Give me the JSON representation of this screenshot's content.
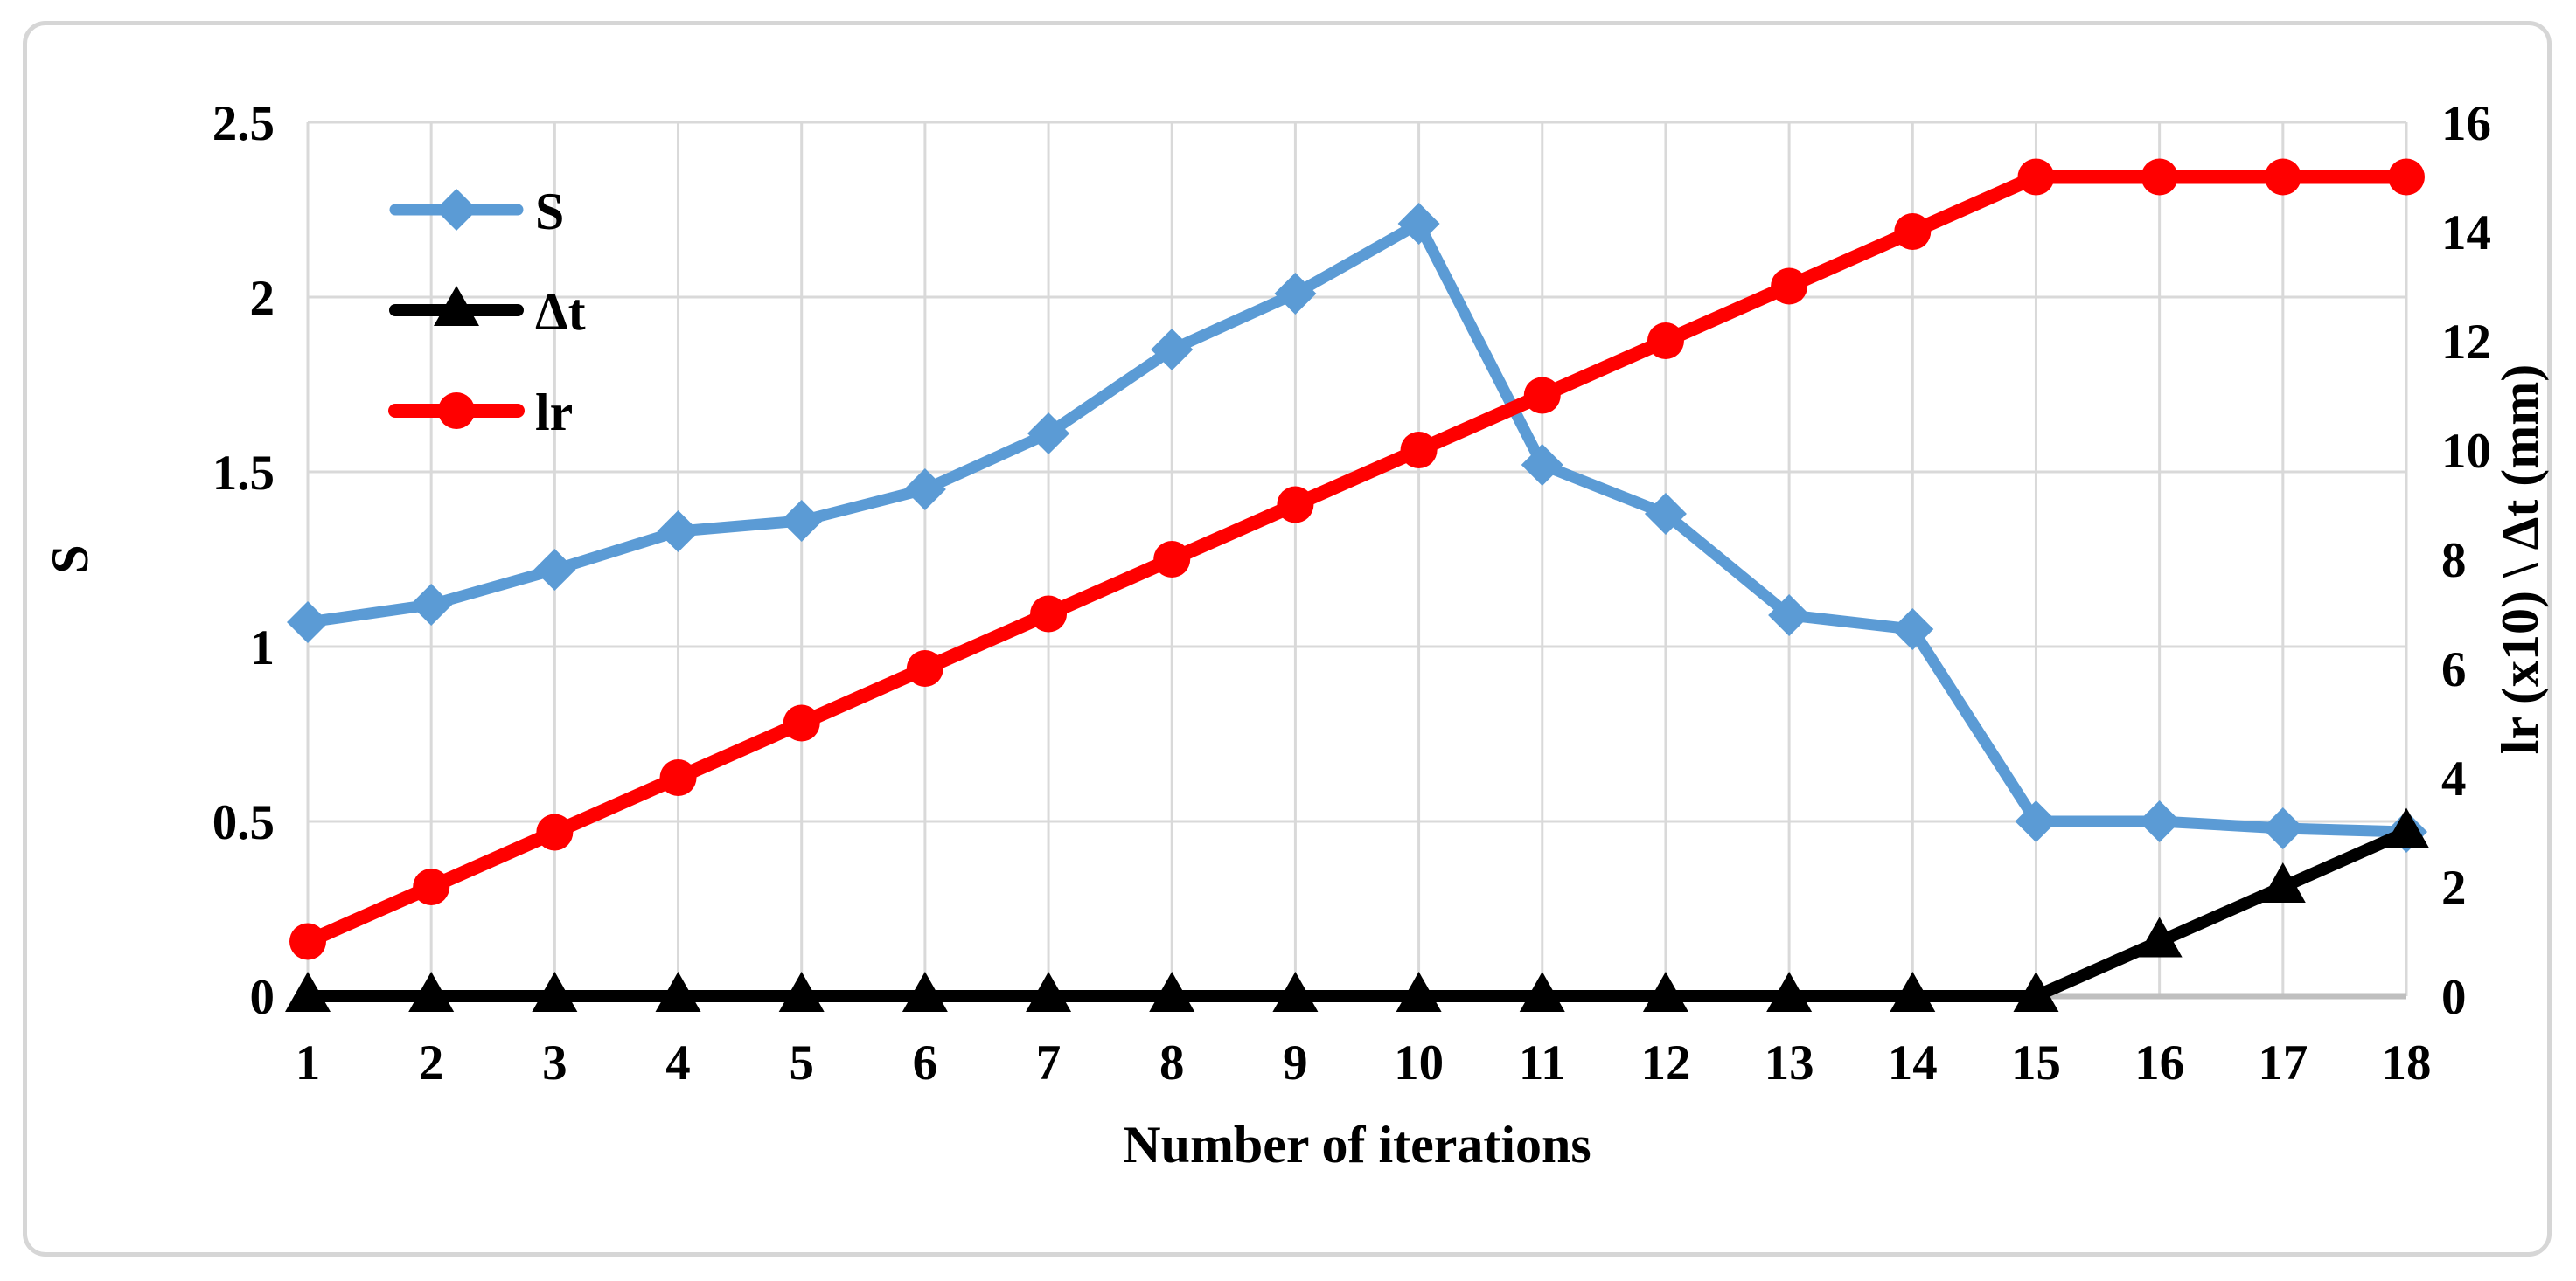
{
  "figure": {
    "background": "#ffffff",
    "border_color": "#d6d6d6"
  },
  "chart_data": {
    "type": "line",
    "title": "",
    "xlabel": "Number of iterations",
    "ylabel_left": "S",
    "ylabel_right": "lr (x10) \\ Δt (mm)",
    "x": [
      1,
      2,
      3,
      4,
      5,
      6,
      7,
      8,
      9,
      10,
      11,
      12,
      13,
      14,
      15,
      16,
      17,
      18
    ],
    "x_tick_labels": [
      "1",
      "2",
      "3",
      "4",
      "5",
      "6",
      "7",
      "8",
      "9",
      "10",
      "11",
      "12",
      "13",
      "14",
      "15",
      "16",
      "17",
      "18"
    ],
    "left_axis": {
      "min": 0,
      "max": 2.5,
      "tick_step": 0.5,
      "tick_labels": [
        "0",
        "0.5",
        "1",
        "1.5",
        "2",
        "2.5"
      ]
    },
    "right_axis": {
      "min": 0,
      "max": 16,
      "tick_step": 2,
      "tick_labels": [
        "0",
        "2",
        "4",
        "6",
        "8",
        "10",
        "12",
        "14",
        "16"
      ]
    },
    "grid": true,
    "legend_position": "top-left-inside",
    "series": [
      {
        "name": "S",
        "axis": "left",
        "color": "#5b9bd5",
        "marker": "diamond",
        "line_width": 13,
        "values": [
          1.07,
          1.12,
          1.22,
          1.33,
          1.36,
          1.45,
          1.61,
          1.85,
          2.01,
          2.21,
          1.52,
          1.38,
          1.09,
          1.05,
          0.5,
          0.5,
          0.48,
          0.47
        ]
      },
      {
        "name": "Δt",
        "axis": "right",
        "color": "#000000",
        "marker": "triangle",
        "line_width": 14,
        "values": [
          0,
          0,
          0,
          0,
          0,
          0,
          0,
          0,
          0,
          0,
          0,
          0,
          0,
          0,
          0,
          1,
          2,
          3
        ]
      },
      {
        "name": "lr",
        "axis": "right",
        "color": "#ff0000",
        "marker": "circle",
        "line_width": 16,
        "values": [
          1,
          2,
          3,
          4,
          5,
          6,
          7,
          8,
          9,
          10,
          11,
          12,
          13,
          14,
          15,
          15,
          15,
          15
        ]
      }
    ],
    "colors": {
      "grid": "#d9d9d9",
      "axis_line": "#bfbfbf",
      "text": "#000000"
    }
  }
}
